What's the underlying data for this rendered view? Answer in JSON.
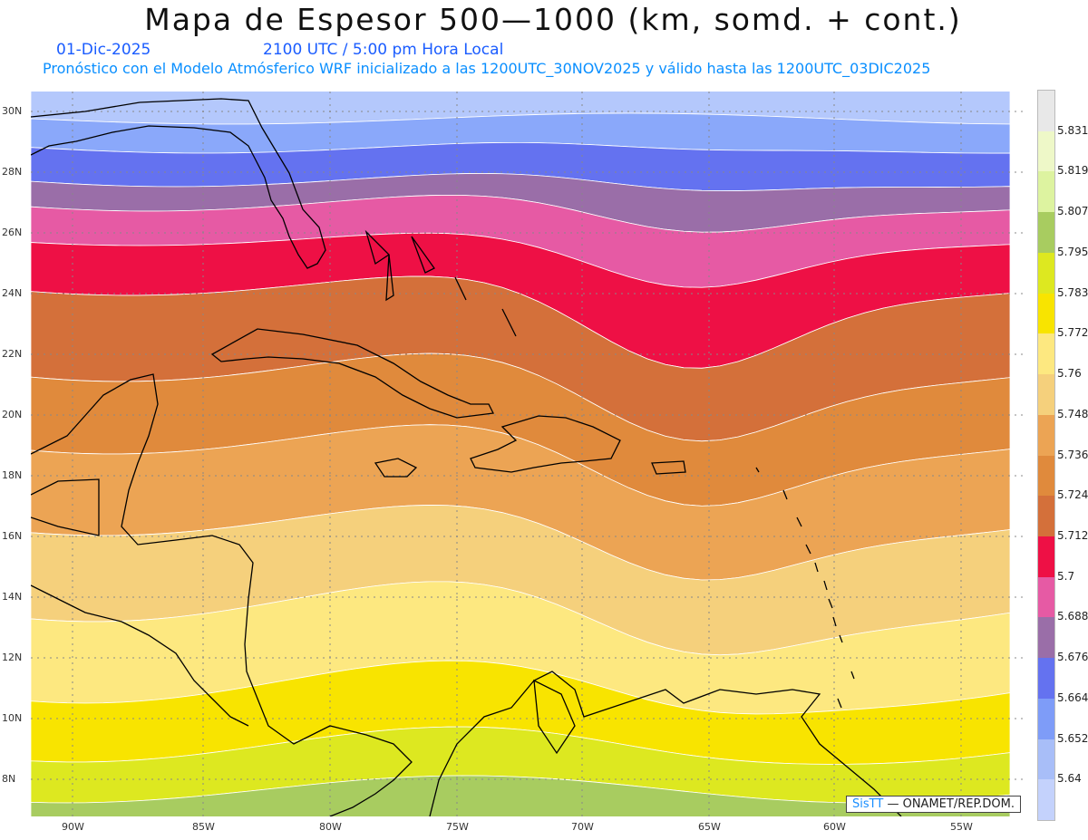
{
  "title": "Mapa de Espesor 500—1000 (km, somd. + cont.)",
  "date": "01-Dic-2025",
  "time": "2100 UTC / 5:00 pm Hora Local",
  "forecast_line": "Pronóstico con el Modelo Atmósferico WRF inicializado a las 1200UTC_30NOV2025 y válido hasta las  1200UTC_03DIC2025",
  "lat_labels": [
    "30N",
    "28N",
    "26N",
    "24N",
    "22N",
    "20N",
    "18N",
    "16N",
    "14N",
    "12N",
    "10N",
    "8N"
  ],
  "lon_labels": [
    "90W",
    "85W",
    "80W",
    "75W",
    "70W",
    "65W",
    "60W",
    "55W"
  ],
  "colorbar": {
    "levels": [
      "5.831",
      "5.819",
      "5.807",
      "5.795",
      "5.783",
      "5.772",
      "5.76",
      "5.748",
      "5.736",
      "5.724",
      "5.712",
      "5.7",
      "5.688",
      "5.676",
      "5.664",
      "5.652",
      "5.64"
    ],
    "colors": [
      "#e8e8e8",
      "#eef8c8",
      "#ddf3a0",
      "#a8cc60",
      "#dde820",
      "#f8e400",
      "#fde880",
      "#f5d07c",
      "#eca454",
      "#e08a3c",
      "#d4703a",
      "#ee1045",
      "#e65aa4",
      "#9a6ea8",
      "#6472f0",
      "#7e9cf8",
      "#a8bef8",
      "#c4d2fc"
    ]
  },
  "credit": {
    "brand": "SisTT",
    "text": "— ONAMET/REP.DOM."
  },
  "band_colors": [
    "#b4c8fc",
    "#8aa8fa",
    "#6472f0",
    "#9a6ea8",
    "#e65aa4",
    "#ee1045",
    "#d4703a",
    "#e08a3c",
    "#eca454",
    "#f5d07c",
    "#fde880",
    "#f8e400",
    "#dde820",
    "#a8cc60"
  ]
}
